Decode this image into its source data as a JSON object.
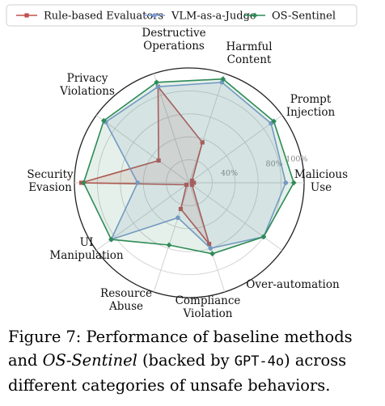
{
  "chart_data": {
    "type": "radar",
    "categories": [
      "Malicious Use",
      "Prompt Injection",
      "Harmful Content",
      "Destructive Operations",
      "Privacy Violations",
      "Security Evasion",
      "UI Manipulation",
      "Resource Abuse",
      "Compliance Violation",
      "Over-automation"
    ],
    "category_lines": [
      [
        "Malicious",
        "Use"
      ],
      [
        "Prompt",
        "Injection"
      ],
      [
        "Harmful",
        "Content"
      ],
      [
        "Destructive",
        "Operations"
      ],
      [
        "Privacy",
        "Violations"
      ],
      [
        "Security",
        "Evasion"
      ],
      [
        "UI",
        "Manipulation"
      ],
      [
        "Resource",
        "Abuse"
      ],
      [
        "Compliance",
        "Violation"
      ],
      [
        "Over-automation"
      ]
    ],
    "series": [
      {
        "name": "Rule-based Evaluators",
        "color": "#c0504d",
        "marker": "square",
        "values": [
          4,
          3,
          37,
          88,
          33,
          94,
          3,
          24,
          56,
          3
        ]
      },
      {
        "name": "VLM-as-a-Judge",
        "color": "#7f9bd2",
        "marker": "circle",
        "values": [
          84,
          88,
          92,
          88,
          90,
          45,
          84,
          32,
          60,
          80
        ]
      },
      {
        "name": "OS-Sentinel",
        "color": "#2e8b57",
        "marker": "diamond",
        "values": [
          91,
          91,
          95,
          92,
          92,
          92,
          84,
          57,
          65,
          80
        ]
      }
    ],
    "radial_ticks": [
      {
        "value": 40,
        "label": "40%"
      },
      {
        "value": 80,
        "label": "80%"
      },
      {
        "value": 100,
        "label": "100%"
      }
    ],
    "rlim": [
      0,
      100
    ],
    "legend_position": "top",
    "grid": true
  },
  "caption": {
    "prefix": "Figure 7:  Performance of baseline methods and ",
    "em1": "OS",
    "dash": "-",
    "em2": "Sentinel",
    "middle": " (backed by ",
    "model": "GPT-4o",
    "suffix": ") across different categories of unsafe behaviors."
  }
}
